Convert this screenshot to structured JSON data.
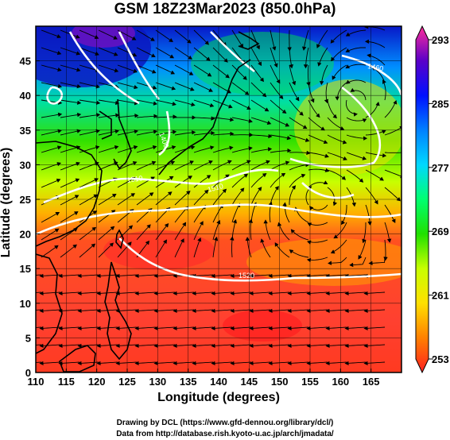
{
  "title": "GSM 18Z23Mar2023 (850.0hPa)",
  "xlabel": "Longitude (degrees)",
  "ylabel": "Latitude  (degrees)",
  "credits": [
    "Drawing by DCL (https://www.gfd-dennou.org/library/dcl/)",
    "Data from http://database.rish.kyoto-u.ac.jp/arch/jmadata/"
  ],
  "colorbar": {
    "min": 253,
    "max": 293,
    "tick_labels": [
      "293",
      "285",
      "277",
      "269",
      "261",
      "253"
    ],
    "colors": [
      "#ff2d9a",
      "#5a00c8",
      "#0010ff",
      "#0080ff",
      "#00d8ff",
      "#00ff70",
      "#20e000",
      "#c8ff00",
      "#ffe000",
      "#ff8000",
      "#ff2020"
    ]
  },
  "contour_labels": [
    "1460",
    "1400",
    "1510",
    "1520",
    "1510"
  ],
  "chart_data": {
    "type": "heatmap",
    "title": "GSM 18Z23Mar2023 (850.0hPa)",
    "xlabel": "Longitude (degrees)",
    "ylabel": "Latitude  (degrees)",
    "xlim": [
      110,
      170
    ],
    "ylim": [
      0,
      50
    ],
    "x_ticks": [
      110,
      115,
      120,
      125,
      130,
      135,
      140,
      145,
      150,
      155,
      160,
      165
    ],
    "y_ticks": [
      0,
      5,
      10,
      15,
      20,
      25,
      30,
      35,
      40,
      45
    ],
    "grid": true,
    "colorbar_range": [
      253,
      293
    ],
    "colorbar_ticks": [
      293,
      285,
      277,
      269,
      261,
      253
    ]
  }
}
